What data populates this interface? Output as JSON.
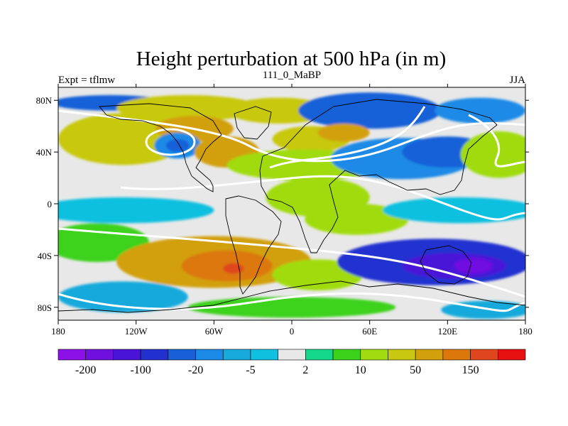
{
  "chart_data": {
    "type": "heatmap",
    "title": "Height perturbation at 500 hPa (in m)",
    "subtitle": "111_0_MaBP",
    "left_label": "Expt = tflmw",
    "right_label": "JJA",
    "xlabel": "",
    "ylabel": "",
    "x_range": [
      -180,
      180
    ],
    "y_range": [
      -90,
      90
    ],
    "x_ticks": [
      {
        "value": -180,
        "label": "180"
      },
      {
        "value": -120,
        "label": "120W"
      },
      {
        "value": -60,
        "label": "60W"
      },
      {
        "value": 0,
        "label": "0"
      },
      {
        "value": 60,
        "label": "60E"
      },
      {
        "value": 120,
        "label": "120E"
      },
      {
        "value": 180,
        "label": "180"
      }
    ],
    "y_ticks": [
      {
        "value": 80,
        "label": "80N"
      },
      {
        "value": 40,
        "label": "40N"
      },
      {
        "value": 0,
        "label": "0"
      },
      {
        "value": -40,
        "label": "40S"
      },
      {
        "value": -80,
        "label": "80S"
      }
    ],
    "colorbar": {
      "colors": [
        "#8c10e8",
        "#7010e0",
        "#4a14d8",
        "#2230d0",
        "#1860d8",
        "#1a8ae6",
        "#18aadc",
        "#10c0e0",
        "#e8e8e8",
        "#14d88a",
        "#3cd21c",
        "#a0dc10",
        "#c8c810",
        "#d2a00a",
        "#dc780a",
        "#e0461e",
        "#e81010"
      ],
      "labeled_ticks": [
        {
          "boundary": 1,
          "label": "-200"
        },
        {
          "boundary": 3,
          "label": "-100"
        },
        {
          "boundary": 5,
          "label": "-20"
        },
        {
          "boundary": 7,
          "label": "-5"
        },
        {
          "boundary": 9,
          "label": "2"
        },
        {
          "boundary": 11,
          "label": "10"
        },
        {
          "boundary": 13,
          "label": "50"
        },
        {
          "boundary": 15,
          "label": "150"
        }
      ]
    },
    "field": [
      {
        "lon": -140,
        "lat": 78,
        "level": 4,
        "rlon": 45,
        "rlat": 6
      },
      {
        "lon": -80,
        "lat": 74,
        "level": 12,
        "rlon": 55,
        "rlat": 10
      },
      {
        "lon": -10,
        "lat": 72,
        "level": 12,
        "rlon": 40,
        "rlat": 10
      },
      {
        "lon": 60,
        "lat": 72,
        "level": 4,
        "rlon": 55,
        "rlat": 14
      },
      {
        "lon": 145,
        "lat": 72,
        "level": 5,
        "rlon": 35,
        "rlat": 10
      },
      {
        "lon": -130,
        "lat": 50,
        "level": 12,
        "rlon": 50,
        "rlat": 20
      },
      {
        "lon": -75,
        "lat": 58,
        "level": 13,
        "rlon": 30,
        "rlat": 10
      },
      {
        "lon": -88,
        "lat": 45,
        "level": 5,
        "rlon": 18,
        "rlat": 10
      },
      {
        "lon": -88,
        "lat": 45,
        "level": 4,
        "rlon": 9,
        "rlat": 5
      },
      {
        "lon": -50,
        "lat": 40,
        "level": 13,
        "rlon": 25,
        "rlat": 12
      },
      {
        "lon": 15,
        "lat": 50,
        "level": 12,
        "rlon": 30,
        "rlat": 10
      },
      {
        "lon": 40,
        "lat": 55,
        "level": 13,
        "rlon": 20,
        "rlat": 7
      },
      {
        "lon": 10,
        "lat": 30,
        "level": 11,
        "rlon": 60,
        "rlat": 12
      },
      {
        "lon": 85,
        "lat": 35,
        "level": 5,
        "rlon": 55,
        "rlat": 16
      },
      {
        "lon": 120,
        "lat": 40,
        "level": 4,
        "rlon": 35,
        "rlat": 12
      },
      {
        "lon": 160,
        "lat": 38,
        "level": 11,
        "rlon": 30,
        "rlat": 18
      },
      {
        "lon": 20,
        "lat": 5,
        "level": 11,
        "rlon": 40,
        "rlat": 15
      },
      {
        "lon": -130,
        "lat": -5,
        "level": 7,
        "rlon": 70,
        "rlat": 10
      },
      {
        "lon": 50,
        "lat": -12,
        "level": 11,
        "rlon": 40,
        "rlat": 12
      },
      {
        "lon": 130,
        "lat": -5,
        "level": 7,
        "rlon": 60,
        "rlat": 10
      },
      {
        "lon": -150,
        "lat": -30,
        "level": 10,
        "rlon": 40,
        "rlat": 15
      },
      {
        "lon": -60,
        "lat": -45,
        "level": 13,
        "rlon": 75,
        "rlat": 20
      },
      {
        "lon": -50,
        "lat": -48,
        "level": 14,
        "rlon": 35,
        "rlat": 12
      },
      {
        "lon": -45,
        "lat": -50,
        "level": 15,
        "rlon": 8,
        "rlat": 4
      },
      {
        "lon": -130,
        "lat": -72,
        "level": 6,
        "rlon": 50,
        "rlat": 12
      },
      {
        "lon": 20,
        "lat": -55,
        "level": 11,
        "rlon": 35,
        "rlat": 12
      },
      {
        "lon": 110,
        "lat": -45,
        "level": 3,
        "rlon": 75,
        "rlat": 18
      },
      {
        "lon": 125,
        "lat": -48,
        "level": 2,
        "rlon": 40,
        "rlat": 10
      },
      {
        "lon": 140,
        "lat": -48,
        "level": 1,
        "rlon": 15,
        "rlat": 6
      },
      {
        "lon": 0,
        "lat": -80,
        "level": 10,
        "rlon": 80,
        "rlat": 8
      },
      {
        "lon": 150,
        "lat": -82,
        "level": 6,
        "rlon": 35,
        "rlat": 7
      }
    ]
  }
}
